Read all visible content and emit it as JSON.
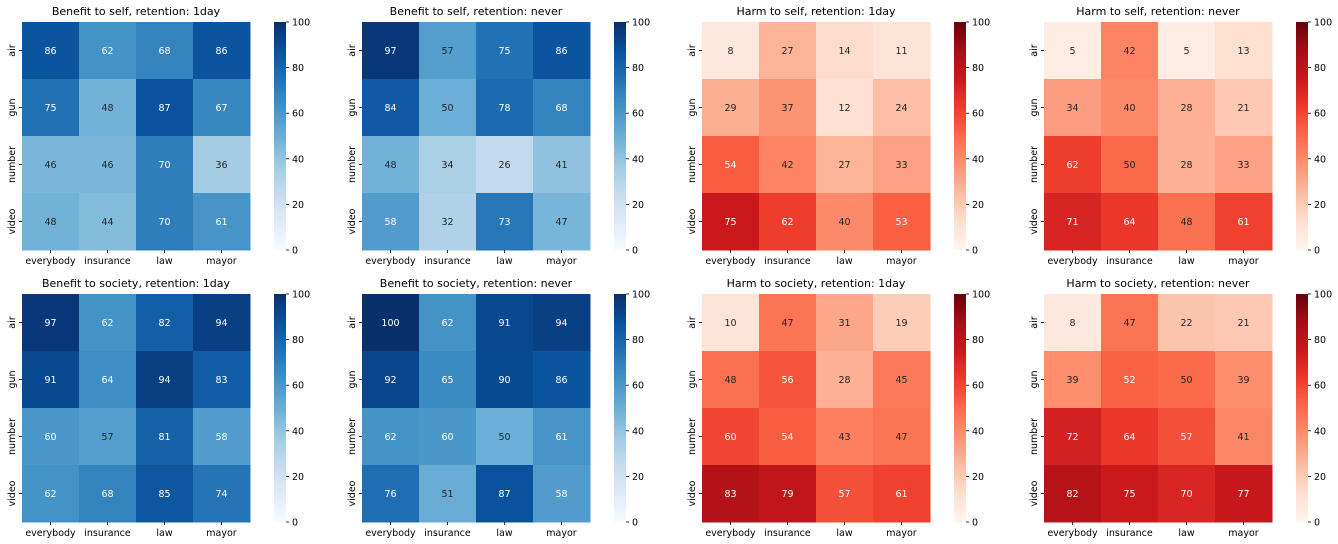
{
  "chart_data": [
    {
      "type": "heatmap",
      "title": "Benefit to self, retention: 1day",
      "colormap": "Blues",
      "vmin": 0,
      "vmax": 100,
      "colorbar_ticks": [
        0,
        20,
        40,
        60,
        80,
        100
      ],
      "x_categories": [
        "everybody",
        "insurance",
        "law",
        "mayor"
      ],
      "y_categories": [
        "air",
        "gun",
        "number",
        "video"
      ],
      "values": [
        [
          86,
          62,
          68,
          86
        ],
        [
          75,
          48,
          87,
          67
        ],
        [
          46,
          46,
          70,
          36
        ],
        [
          48,
          44,
          70,
          61
        ]
      ]
    },
    {
      "type": "heatmap",
      "title": "Benefit to self, retention: never",
      "colormap": "Blues",
      "vmin": 0,
      "vmax": 100,
      "colorbar_ticks": [
        0,
        20,
        40,
        60,
        80,
        100
      ],
      "x_categories": [
        "everybody",
        "insurance",
        "law",
        "mayor"
      ],
      "y_categories": [
        "air",
        "gun",
        "number",
        "video"
      ],
      "values": [
        [
          97,
          57,
          75,
          86
        ],
        [
          84,
          50,
          78,
          68
        ],
        [
          48,
          34,
          26,
          41
        ],
        [
          58,
          32,
          73,
          47
        ]
      ]
    },
    {
      "type": "heatmap",
      "title": "Harm to self, retention: 1day",
      "colormap": "Reds",
      "vmin": 0,
      "vmax": 100,
      "colorbar_ticks": [
        0,
        20,
        40,
        60,
        80,
        100
      ],
      "x_categories": [
        "everybody",
        "insurance",
        "law",
        "mayor"
      ],
      "y_categories": [
        "air",
        "gun",
        "number",
        "video"
      ],
      "values": [
        [
          8,
          27,
          14,
          11
        ],
        [
          29,
          37,
          12,
          24
        ],
        [
          54,
          42,
          27,
          33
        ],
        [
          75,
          62,
          40,
          53
        ]
      ]
    },
    {
      "type": "heatmap",
      "title": "Harm to self, retention: never",
      "colormap": "Reds",
      "vmin": 0,
      "vmax": 100,
      "colorbar_ticks": [
        0,
        20,
        40,
        60,
        80,
        100
      ],
      "x_categories": [
        "everybody",
        "insurance",
        "law",
        "mayor"
      ],
      "y_categories": [
        "air",
        "gun",
        "number",
        "video"
      ],
      "values": [
        [
          5,
          42,
          5,
          13
        ],
        [
          34,
          40,
          28,
          21
        ],
        [
          62,
          50,
          28,
          33
        ],
        [
          71,
          64,
          48,
          61
        ]
      ]
    },
    {
      "type": "heatmap",
      "title": "Benefit to society, retention: 1day",
      "colormap": "Blues",
      "vmin": 0,
      "vmax": 100,
      "colorbar_ticks": [
        0,
        20,
        40,
        60,
        80,
        100
      ],
      "x_categories": [
        "everybody",
        "insurance",
        "law",
        "mayor"
      ],
      "y_categories": [
        "air",
        "gun",
        "number",
        "video"
      ],
      "values": [
        [
          97,
          62,
          82,
          94
        ],
        [
          91,
          64,
          94,
          83
        ],
        [
          60,
          57,
          81,
          58
        ],
        [
          62,
          68,
          85,
          74
        ]
      ]
    },
    {
      "type": "heatmap",
      "title": "Benefit to society, retention: never",
      "colormap": "Blues",
      "vmin": 0,
      "vmax": 100,
      "colorbar_ticks": [
        0,
        20,
        40,
        60,
        80,
        100
      ],
      "x_categories": [
        "everybody",
        "insurance",
        "law",
        "mayor"
      ],
      "y_categories": [
        "air",
        "gun",
        "number",
        "video"
      ],
      "values": [
        [
          100,
          62,
          91,
          94
        ],
        [
          92,
          65,
          90,
          86
        ],
        [
          62,
          60,
          50,
          61
        ],
        [
          76,
          51,
          87,
          58
        ]
      ]
    },
    {
      "type": "heatmap",
      "title": "Harm to society, retention: 1day",
      "colormap": "Reds",
      "vmin": 0,
      "vmax": 100,
      "colorbar_ticks": [
        0,
        20,
        40,
        60,
        80,
        100
      ],
      "x_categories": [
        "everybody",
        "insurance",
        "law",
        "mayor"
      ],
      "y_categories": [
        "air",
        "gun",
        "number",
        "video"
      ],
      "values": [
        [
          10,
          47,
          31,
          19
        ],
        [
          48,
          56,
          28,
          45
        ],
        [
          60,
          54,
          43,
          47
        ],
        [
          83,
          79,
          57,
          61
        ]
      ]
    },
    {
      "type": "heatmap",
      "title": "Harm to society, retention: never",
      "colormap": "Reds",
      "vmin": 0,
      "vmax": 100,
      "colorbar_ticks": [
        0,
        20,
        40,
        60,
        80,
        100
      ],
      "x_categories": [
        "everybody",
        "insurance",
        "law",
        "mayor"
      ],
      "y_categories": [
        "air",
        "gun",
        "number",
        "video"
      ],
      "values": [
        [
          8,
          47,
          22,
          21
        ],
        [
          39,
          52,
          50,
          39
        ],
        [
          72,
          64,
          57,
          41
        ],
        [
          82,
          75,
          70,
          77
        ]
      ]
    }
  ]
}
